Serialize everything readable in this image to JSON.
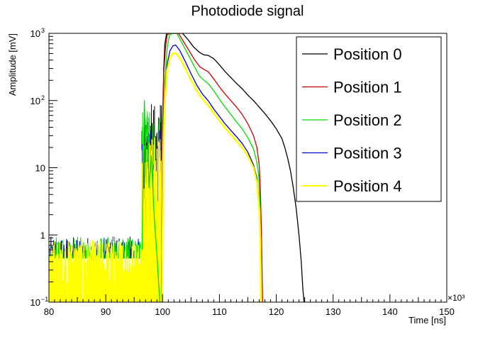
{
  "chart_data": {
    "type": "line",
    "title": "Photodiode signal",
    "xlabel": "Time [ns]",
    "ylabel": "Amplitude [mV]",
    "x_multiplier_label": "×10³",
    "xlim": [
      80,
      150
    ],
    "ylim": [
      0.1,
      1000
    ],
    "yscale": "log",
    "grid": false,
    "legend_position": "top-right",
    "x_ticks": [
      {
        "value": 80,
        "label": "80"
      },
      {
        "value": 90,
        "label": "90"
      },
      {
        "value": 100,
        "label": "100"
      },
      {
        "value": 110,
        "label": "110"
      },
      {
        "value": 120,
        "label": "120"
      },
      {
        "value": 130,
        "label": "130"
      },
      {
        "value": 140,
        "label": "140"
      },
      {
        "value": 150,
        "label": "150"
      }
    ],
    "y_ticks": [
      {
        "value": 0.1,
        "base": "10",
        "exp": "−1"
      },
      {
        "value": 1,
        "base": "1",
        "exp": ""
      },
      {
        "value": 10,
        "base": "10",
        "exp": ""
      },
      {
        "value": 100,
        "base": "10",
        "exp": "2"
      },
      {
        "value": 1000,
        "base": "10",
        "exp": "3"
      }
    ],
    "series": [
      {
        "name": "Position 0",
        "color": "#000000",
        "points": [
          [
            99.8,
            0.1
          ],
          [
            100.0,
            50
          ],
          [
            100.2,
            300
          ],
          [
            100.4,
            700
          ],
          [
            100.7,
            1000
          ],
          [
            103.5,
            1000
          ],
          [
            104.5,
            800
          ],
          [
            105.5,
            620
          ],
          [
            106.5,
            520
          ],
          [
            107.2,
            480
          ],
          [
            108,
            470
          ],
          [
            109,
            420
          ],
          [
            110,
            340
          ],
          [
            111,
            270
          ],
          [
            112,
            220
          ],
          [
            113,
            180
          ],
          [
            114,
            150
          ],
          [
            115,
            120
          ],
          [
            116,
            100
          ],
          [
            117,
            80
          ],
          [
            118,
            64
          ],
          [
            119,
            50
          ],
          [
            120,
            38
          ],
          [
            121,
            27
          ],
          [
            121.5,
            20
          ],
          [
            122,
            14
          ],
          [
            122.5,
            9
          ],
          [
            123,
            5
          ],
          [
            123.5,
            2.5
          ],
          [
            124,
            1
          ],
          [
            124.4,
            0.4
          ],
          [
            124.7,
            0.15
          ],
          [
            124.9,
            0.1
          ]
        ]
      },
      {
        "name": "Position 1",
        "color": "#cc0000",
        "points": [
          [
            99.8,
            0.1
          ],
          [
            100.0,
            40
          ],
          [
            100.2,
            250
          ],
          [
            100.5,
            600
          ],
          [
            100.8,
            950
          ],
          [
            101.2,
            1000
          ],
          [
            102.8,
            1000
          ],
          [
            103.5,
            800
          ],
          [
            104.5,
            580
          ],
          [
            105.5,
            420
          ],
          [
            106.5,
            320
          ],
          [
            107.3,
            290
          ],
          [
            108,
            270
          ],
          [
            109,
            210
          ],
          [
            110,
            160
          ],
          [
            111,
            125
          ],
          [
            112,
            100
          ],
          [
            113,
            80
          ],
          [
            114,
            62
          ],
          [
            115,
            45
          ],
          [
            116,
            30
          ],
          [
            116.6,
            20
          ],
          [
            117,
            11
          ],
          [
            117.2,
            5
          ],
          [
            117.4,
            1
          ],
          [
            117.5,
            0.3
          ],
          [
            117.6,
            0.1
          ]
        ]
      },
      {
        "name": "Position 2",
        "color": "#00dd00",
        "points": [
          [
            96.4,
            0.6
          ],
          [
            96.6,
            10
          ],
          [
            96.8,
            100
          ],
          [
            97.0,
            20
          ],
          [
            97.3,
            60
          ],
          [
            97.6,
            5
          ],
          [
            98,
            15
          ],
          [
            98.5,
            2
          ],
          [
            99,
            0.5
          ],
          [
            99.5,
            0.1
          ],
          [
            99.9,
            0.1
          ],
          [
            100.1,
            30
          ],
          [
            100.4,
            200
          ],
          [
            100.8,
            600
          ],
          [
            101.2,
            950
          ],
          [
            101.8,
            1000
          ],
          [
            102.5,
            1000
          ],
          [
            103.5,
            700
          ],
          [
            104.5,
            480
          ],
          [
            105.5,
            330
          ],
          [
            106.5,
            230
          ],
          [
            107.3,
            200
          ],
          [
            108,
            180
          ],
          [
            109,
            140
          ],
          [
            110,
            105
          ],
          [
            111,
            80
          ],
          [
            112,
            62
          ],
          [
            113,
            48
          ],
          [
            114,
            38
          ],
          [
            115,
            28
          ],
          [
            116,
            19
          ],
          [
            116.5,
            13
          ],
          [
            116.9,
            8
          ],
          [
            117.1,
            3
          ],
          [
            117.2,
            0.8
          ],
          [
            117.3,
            0.1
          ]
        ]
      },
      {
        "name": "Position 3",
        "color": "#0000cc",
        "points": [
          [
            99.9,
            0.1
          ],
          [
            100.1,
            20
          ],
          [
            100.4,
            120
          ],
          [
            100.8,
            350
          ],
          [
            101.3,
            550
          ],
          [
            101.8,
            650
          ],
          [
            102.3,
            670
          ],
          [
            103,
            560
          ],
          [
            104,
            380
          ],
          [
            105,
            250
          ],
          [
            106,
            170
          ],
          [
            107,
            125
          ],
          [
            108,
            100
          ],
          [
            109,
            75
          ],
          [
            110,
            58
          ],
          [
            111,
            45
          ],
          [
            112,
            36
          ],
          [
            113,
            29
          ],
          [
            114,
            23
          ],
          [
            115,
            17
          ],
          [
            116,
            11
          ],
          [
            116.6,
            7
          ],
          [
            117,
            3
          ],
          [
            117.2,
            1
          ],
          [
            117.3,
            0.1
          ]
        ]
      },
      {
        "name": "Position 4",
        "color": "#ffff00",
        "points": [
          [
            99.9,
            0.1
          ],
          [
            100.1,
            15
          ],
          [
            100.4,
            100
          ],
          [
            100.8,
            280
          ],
          [
            101.3,
            430
          ],
          [
            101.8,
            500
          ],
          [
            102.3,
            510
          ],
          [
            103,
            430
          ],
          [
            104,
            300
          ],
          [
            105,
            200
          ],
          [
            106,
            140
          ],
          [
            107,
            105
          ],
          [
            108,
            85
          ],
          [
            109,
            65
          ],
          [
            110,
            50
          ],
          [
            111,
            39
          ],
          [
            112,
            31
          ],
          [
            113,
            25
          ],
          [
            114,
            20
          ],
          [
            115,
            15
          ],
          [
            116,
            10
          ],
          [
            116.6,
            6
          ],
          [
            117,
            2.5
          ],
          [
            117.2,
            0.8
          ],
          [
            117.3,
            0.1
          ]
        ]
      }
    ],
    "noise_region": {
      "x_start": 80,
      "x_end": 96.3,
      "level_low": 0.1,
      "level_high": 1.0
    },
    "spike_region": {
      "x_start": 96.3,
      "x_end": 99.8
    }
  }
}
